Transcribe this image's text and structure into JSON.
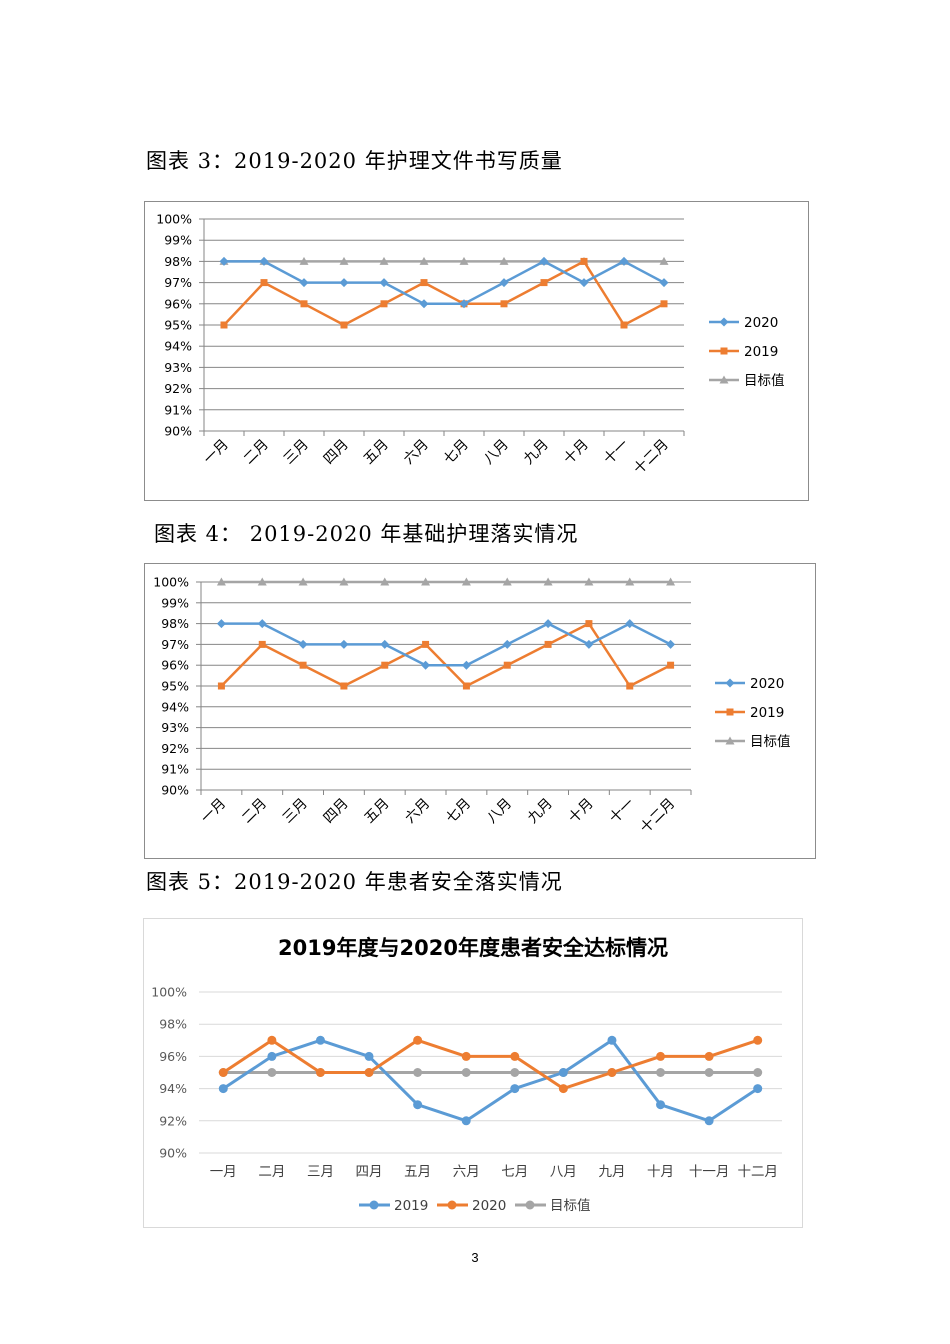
{
  "captions": {
    "c1": "图表 3：2019-2020 年护理文件书写质量",
    "c2": "图表 4：  2019-2020 年基础护理落实情况",
    "c3": "图表 5：2019-2020 年患者安全落实情况"
  },
  "page_number": "3",
  "colors": {
    "blue": "#5b9bd5",
    "orange": "#ed7d31",
    "gray": "#a5a5a5",
    "grid": "#868686"
  },
  "chart_data": [
    {
      "type": "line",
      "title": "",
      "categories": [
        "一月",
        "二月",
        "三月",
        "四月",
        "五月",
        "六月",
        "七月",
        "八月",
        "九月",
        "十月",
        "十一",
        "十二月"
      ],
      "y_tick_labels": [
        "90%",
        "91%",
        "92%",
        "93%",
        "94%",
        "95%",
        "96%",
        "97%",
        "98%",
        "99%",
        "100%"
      ],
      "ylim": [
        90,
        100
      ],
      "grid": true,
      "legend": "right",
      "series": [
        {
          "name": "2020",
          "marker": "diamond",
          "color": "#5b9bd5",
          "values": [
            98,
            98,
            97,
            97,
            97,
            96,
            96,
            97,
            98,
            97,
            98,
            97
          ]
        },
        {
          "name": "2019",
          "marker": "square",
          "color": "#ed7d31",
          "values": [
            95,
            97,
            96,
            95,
            96,
            97,
            96,
            96,
            97,
            98,
            95,
            96
          ]
        },
        {
          "name": "目标值",
          "marker": "triangle",
          "color": "#a5a5a5",
          "values": [
            98,
            98,
            98,
            98,
            98,
            98,
            98,
            98,
            98,
            98,
            98,
            98
          ]
        }
      ]
    },
    {
      "type": "line",
      "title": "",
      "categories": [
        "一月",
        "二月",
        "三月",
        "四月",
        "五月",
        "六月",
        "七月",
        "八月",
        "九月",
        "十月",
        "十一",
        "十二月"
      ],
      "y_tick_labels": [
        "90%",
        "91%",
        "92%",
        "93%",
        "94%",
        "95%",
        "96%",
        "97%",
        "98%",
        "99%",
        "100%"
      ],
      "ylim": [
        90,
        100
      ],
      "grid": true,
      "legend": "right",
      "series": [
        {
          "name": "2020",
          "marker": "diamond",
          "color": "#5b9bd5",
          "values": [
            98,
            98,
            97,
            97,
            97,
            96,
            96,
            97,
            98,
            97,
            98,
            97
          ]
        },
        {
          "name": "2019",
          "marker": "square",
          "color": "#ed7d31",
          "values": [
            95,
            97,
            96,
            95,
            96,
            97,
            95,
            96,
            97,
            98,
            95,
            96
          ]
        },
        {
          "name": "目标值",
          "marker": "triangle",
          "color": "#a5a5a5",
          "values": [
            100,
            100,
            100,
            100,
            100,
            100,
            100,
            100,
            100,
            100,
            100,
            100
          ]
        }
      ]
    },
    {
      "type": "line",
      "title": "2019年度与2020年度患者安全达标情况",
      "categories": [
        "一月",
        "二月",
        "三月",
        "四月",
        "五月",
        "六月",
        "七月",
        "八月",
        "九月",
        "十月",
        "十一月",
        "十二月"
      ],
      "y_tick_labels": [
        "90%",
        "92%",
        "94%",
        "96%",
        "98%",
        "100%"
      ],
      "ylim": [
        90,
        100
      ],
      "grid": true,
      "legend": "bottom",
      "series": [
        {
          "name": "2019",
          "marker": "circle",
          "color": "#5b9bd5",
          "values": [
            94,
            96,
            97,
            96,
            93,
            92,
            94,
            95,
            97,
            93,
            92,
            94
          ]
        },
        {
          "name": "2020",
          "marker": "circle",
          "color": "#ed7d31",
          "values": [
            95,
            97,
            95,
            95,
            97,
            96,
            96,
            94,
            95,
            96,
            96,
            97
          ]
        },
        {
          "name": "目标值",
          "marker": "circle",
          "color": "#a5a5a5",
          "values": [
            95,
            95,
            95,
            95,
            95,
            95,
            95,
            95,
            95,
            95,
            95,
            95
          ]
        }
      ]
    }
  ]
}
